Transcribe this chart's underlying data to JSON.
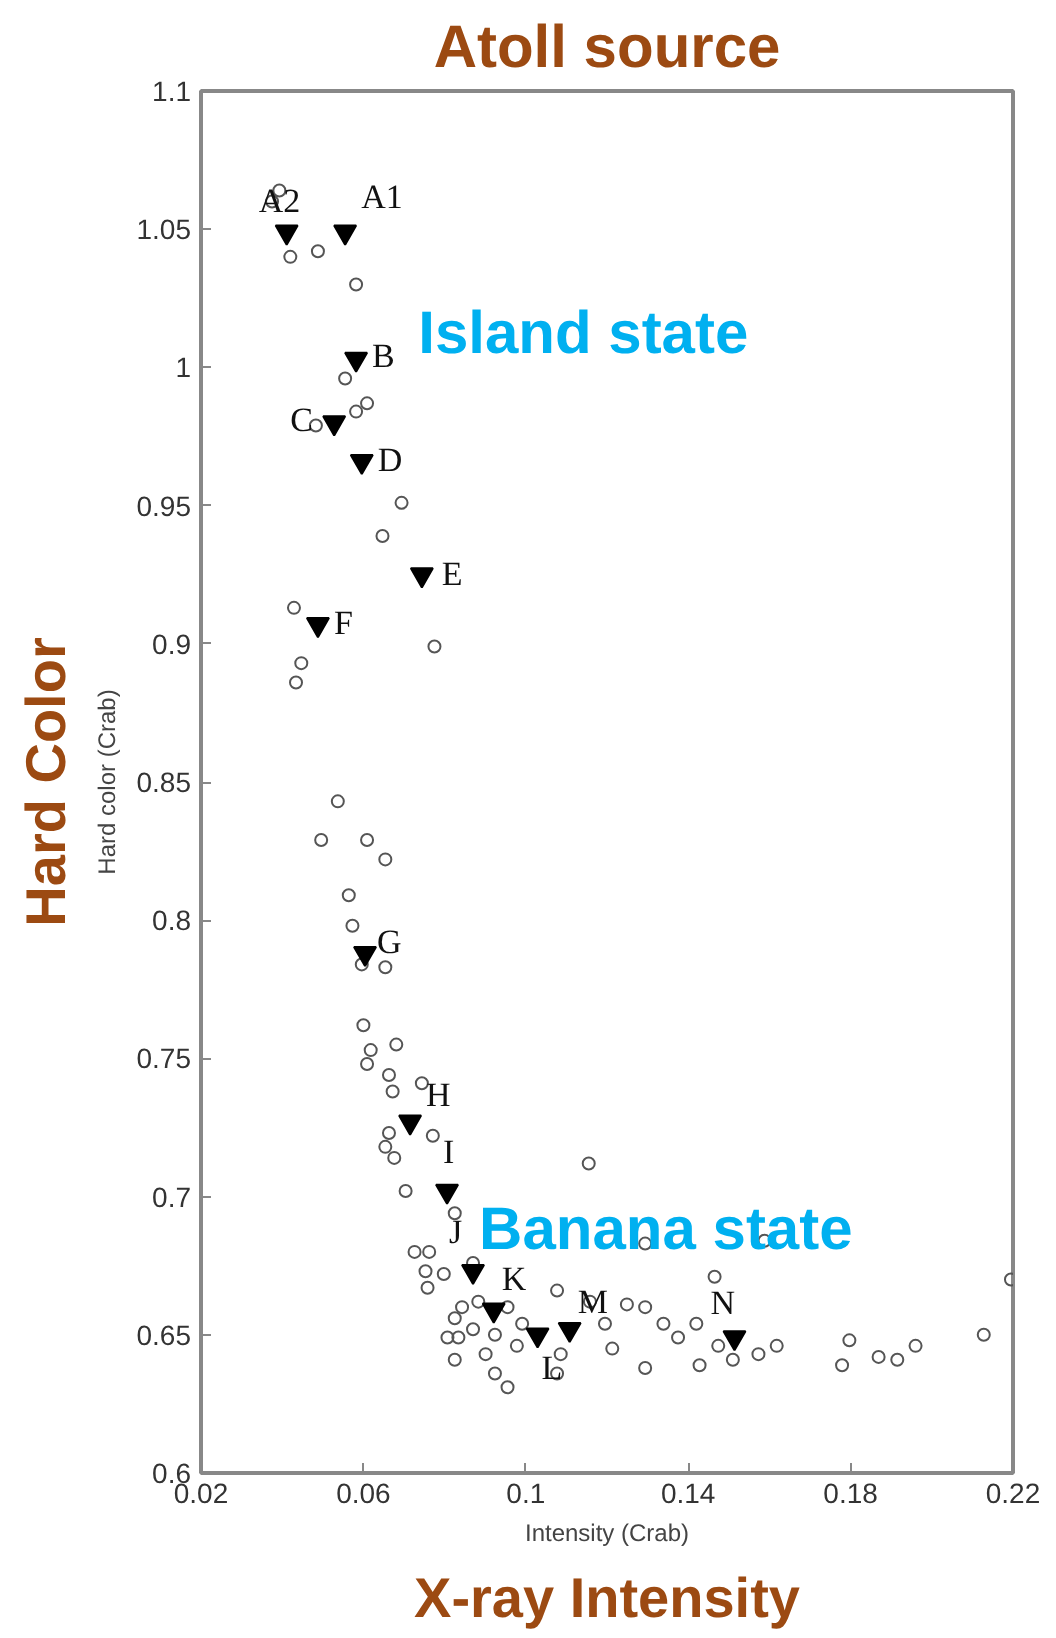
{
  "chart_data": {
    "type": "scatter",
    "title": "Atoll source",
    "xlabel": "Intensity (Crab)",
    "ylabel": "Hard color (Crab)",
    "xlim": [
      0.02,
      0.22
    ],
    "ylim": [
      0.6,
      1.1
    ],
    "xticks": [
      0.02,
      0.06,
      0.1,
      0.14,
      0.18,
      0.22
    ],
    "yticks": [
      0.6,
      0.65,
      0.7,
      0.75,
      0.8,
      0.85,
      0.9,
      0.95,
      1,
      1.05,
      1.1
    ],
    "grid": false,
    "series": [
      {
        "marker": "circle",
        "color": "#555555",
        "x": [
          0.0375,
          0.0393,
          0.042,
          0.0488,
          0.0582,
          0.0555,
          0.0483,
          0.0609,
          0.0582,
          0.0694,
          0.0647,
          0.0775,
          0.0429,
          0.0447,
          0.0434,
          0.0537,
          0.0496,
          0.0609,
          0.0654,
          0.0564,
          0.0573,
          0.0596,
          0.0654,
          0.06,
          0.0618,
          0.0609,
          0.0681,
          0.0663,
          0.0672,
          0.0744,
          0.0771,
          0.0663,
          0.0654,
          0.0676,
          0.0704,
          0.0825,
          0.0726,
          0.0762,
          0.0753,
          0.0798,
          0.0758,
          0.1155,
          0.1294,
          0.1588,
          0.2195,
          0.1465,
          0.142,
          0.2128,
          0.1797,
          0.1779,
          0.1869,
          0.1915,
          0.196,
          0.1573,
          0.1618,
          0.1428,
          0.1294,
          0.1294,
          0.1339,
          0.1375,
          0.1249,
          0.1195,
          0.1213,
          0.1474,
          0.151,
          0.1077,
          0.1158,
          0.1086,
          0.1077,
          0.0955,
          0.0991,
          0.0883,
          0.0825,
          0.0834,
          0.087,
          0.0825,
          0.0901,
          0.0924,
          0.0955,
          0.0978,
          0.0924,
          0.0807,
          0.0843,
          0.087
        ],
        "values": [
          1.06,
          1.064,
          1.04,
          1.042,
          1.03,
          0.996,
          0.979,
          0.987,
          0.984,
          0.951,
          0.939,
          0.899,
          0.913,
          0.893,
          0.886,
          0.843,
          0.829,
          0.829,
          0.822,
          0.809,
          0.798,
          0.784,
          0.783,
          0.762,
          0.753,
          0.748,
          0.755,
          0.744,
          0.738,
          0.741,
          0.722,
          0.723,
          0.718,
          0.714,
          0.702,
          0.694,
          0.68,
          0.68,
          0.673,
          0.672,
          0.667,
          0.712,
          0.683,
          0.684,
          0.67,
          0.671,
          0.654,
          0.65,
          0.648,
          0.639,
          0.642,
          0.641,
          0.646,
          0.643,
          0.646,
          0.639,
          0.638,
          0.66,
          0.654,
          0.649,
          0.661,
          0.654,
          0.645,
          0.646,
          0.641,
          0.666,
          0.662,
          0.643,
          0.636,
          0.66,
          0.654,
          0.662,
          0.656,
          0.649,
          0.652,
          0.641,
          0.643,
          0.636,
          0.631,
          0.646,
          0.65,
          0.649,
          0.66,
          0.676
        ]
      },
      {
        "marker": "triangle",
        "color": "#000000",
        "x": [
          0.0411,
          0.0555,
          0.0582,
          0.0528,
          0.0596,
          0.0744,
          0.0488,
          0.0604,
          0.0715,
          0.0806,
          0.087,
          0.0921,
          0.1029,
          0.1108,
          0.1514
        ],
        "values": [
          1.049,
          1.049,
          1.003,
          0.98,
          0.966,
          0.925,
          0.907,
          0.788,
          0.727,
          0.702,
          0.673,
          0.659,
          0.65,
          0.652,
          0.649
        ]
      }
    ],
    "annotations": [
      "Hard Color",
      "X-ray Intensity",
      "Island state",
      "Banana state",
      {
        "text": "A2",
        "x": 0.0411,
        "y": 1.049
      },
      {
        "text": "A1",
        "x": 0.0555,
        "y": 1.049
      },
      {
        "text": "B",
        "x": 0.0582,
        "y": 1.003
      },
      {
        "text": "C",
        "x": 0.0528,
        "y": 0.98
      },
      {
        "text": "D",
        "x": 0.0596,
        "y": 0.966
      },
      {
        "text": "E",
        "x": 0.0744,
        "y": 0.925
      },
      {
        "text": "F",
        "x": 0.0488,
        "y": 0.907
      },
      {
        "text": "G",
        "x": 0.0604,
        "y": 0.788
      },
      {
        "text": "H",
        "x": 0.0715,
        "y": 0.727
      },
      {
        "text": "I",
        "x": 0.0806,
        "y": 0.702
      },
      {
        "text": "J",
        "x": 0.087,
        "y": 0.673
      },
      {
        "text": "K",
        "x": 0.0921,
        "y": 0.659
      },
      {
        "text": "L",
        "x": 0.1029,
        "y": 0.65
      },
      {
        "text": "M",
        "x": 0.1108,
        "y": 0.652
      },
      {
        "text": "N",
        "x": 0.1514,
        "y": 0.649
      }
    ]
  }
}
